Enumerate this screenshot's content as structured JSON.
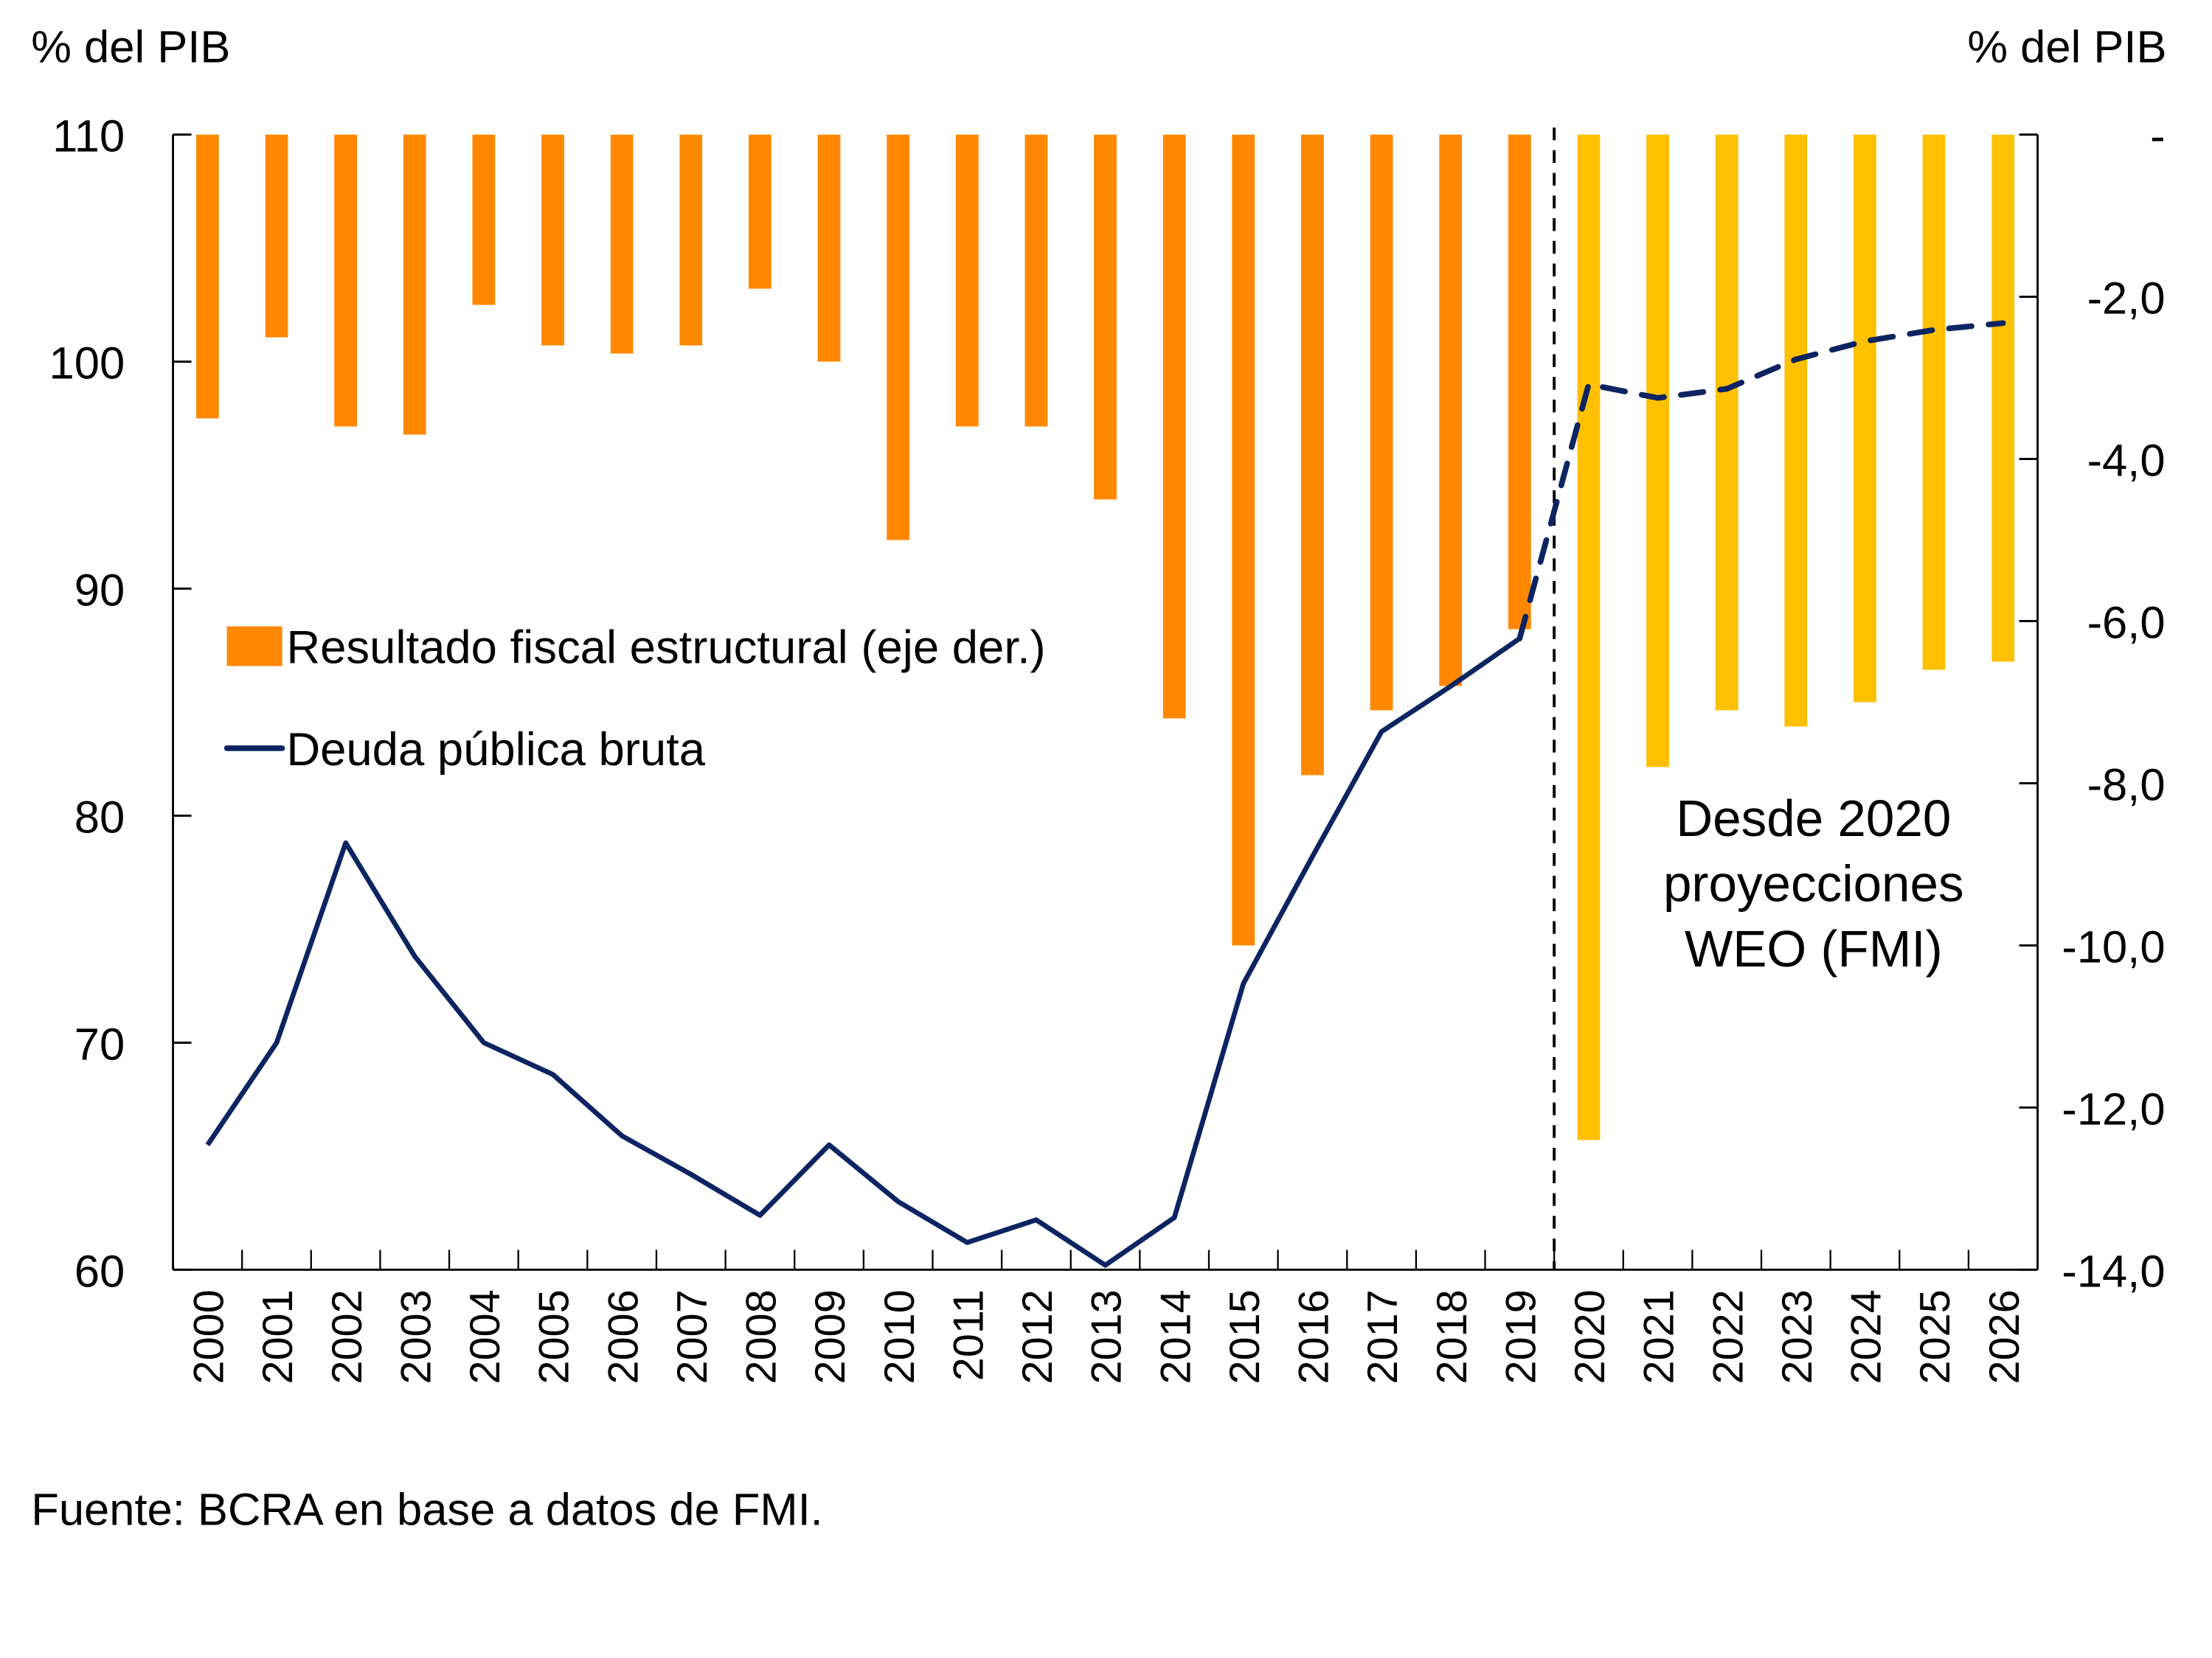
{
  "chart_data": {
    "type": "bar+line",
    "title": "",
    "left_axis": {
      "label": "% del PIB",
      "range": [
        60,
        110
      ],
      "ticks": [
        "110",
        "100",
        "90",
        "80",
        "70",
        "60"
      ],
      "tick_values": [
        110,
        100,
        90,
        80,
        70,
        60
      ]
    },
    "right_axis": {
      "label": "% del PIB",
      "range": [
        -14,
        0
      ],
      "ticks": [
        "-",
        "-2,0",
        "-4,0",
        "-6,0",
        "-8,0",
        "-10,0",
        "-12,0",
        "-14,0"
      ],
      "tick_values": [
        0,
        -2,
        -4,
        -6,
        -8,
        -10,
        -12,
        -14
      ]
    },
    "categories": [
      "2000",
      "2001",
      "2002",
      "2003",
      "2004",
      "2005",
      "2006",
      "2007",
      "2008",
      "2009",
      "2010",
      "2011",
      "2012",
      "2013",
      "2014",
      "2015",
      "2016",
      "2017",
      "2018",
      "2019",
      "2020",
      "2021",
      "2022",
      "2023",
      "2024",
      "2025",
      "2026"
    ],
    "series": [
      {
        "name": "Resultado fiscal estructural (eje der.)",
        "type": "bar",
        "axis": "right",
        "color": "#FF8800",
        "projection_color": "#FFC000",
        "values": [
          -3.5,
          -2.5,
          -3.6,
          -3.7,
          -2.1,
          -2.6,
          -2.7,
          -2.6,
          -1.9,
          -2.8,
          -5.0,
          -3.6,
          -3.6,
          -4.5,
          -7.2,
          -10.0,
          -7.9,
          -7.1,
          -6.8,
          -6.1,
          -12.4,
          -7.8,
          -7.1,
          -7.3,
          -7.0,
          -6.6,
          -6.5
        ]
      },
      {
        "name": "Deuda pública bruta",
        "type": "line",
        "axis": "left",
        "color": "#0C2461",
        "values": [
          65.5,
          70.0,
          78.8,
          73.8,
          70.0,
          68.6,
          65.9,
          64.2,
          62.4,
          65.5,
          63.0,
          61.2,
          62.2,
          60.2,
          62.3,
          72.6,
          78.2,
          83.7,
          85.7,
          87.8,
          99.0,
          98.4,
          98.8,
          100.1,
          100.9,
          101.4,
          101.7
        ]
      }
    ],
    "projection_start": "2020",
    "annotation": [
      "Desde 2020",
      "proyecciones",
      "WEO (FMI)"
    ],
    "legend": [
      "Resultado fiscal estructural (eje der.)",
      "Deuda pública bruta"
    ],
    "legend_position": "middle-left",
    "grid": false,
    "source": "Fuente: BCRA en base a datos de FMI."
  }
}
